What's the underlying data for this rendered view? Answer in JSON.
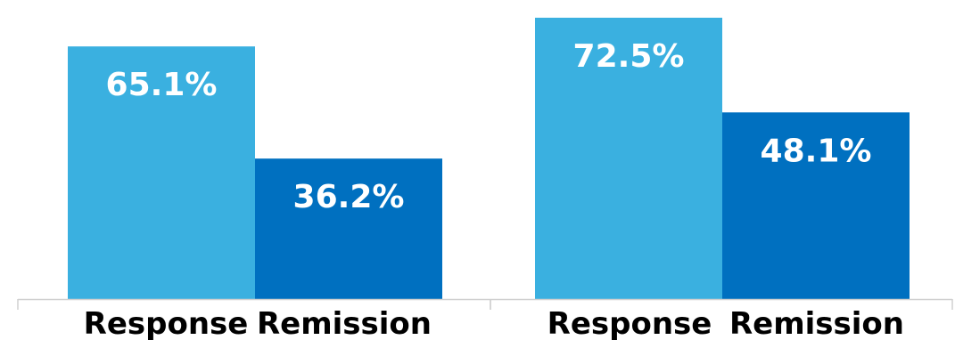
{
  "chart_data": [
    {
      "type": "bar",
      "categories": [
        "Response",
        "Remission"
      ],
      "values": [
        65.1,
        36.2
      ],
      "data_labels": [
        "65.1%",
        "36.2%"
      ],
      "colors": [
        "#3AB0E0",
        "#0070C0"
      ],
      "ylim": [
        0,
        75
      ],
      "grid": false,
      "legend": "none"
    },
    {
      "type": "bar",
      "categories": [
        "Response",
        "Remission"
      ],
      "values": [
        72.5,
        48.1
      ],
      "data_labels": [
        "72.5%",
        "48.1%"
      ],
      "colors": [
        "#3AB0E0",
        "#0070C0"
      ],
      "ylim": [
        0,
        75
      ],
      "grid": false,
      "legend": "none"
    }
  ]
}
